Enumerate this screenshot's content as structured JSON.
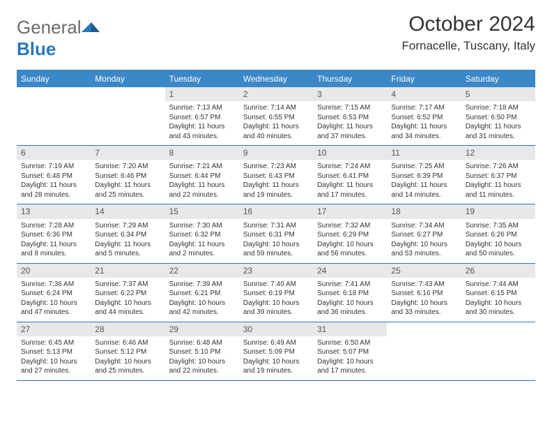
{
  "logo": {
    "word1": "General",
    "word2": "Blue"
  },
  "title": "October 2024",
  "location": "Fornacelle, Tuscany, Italy",
  "colors": {
    "header_bg": "#3b88c9",
    "rule": "#2a77bb",
    "daynum_bg": "#e8e8e8",
    "text": "#333333"
  },
  "day_headers": [
    "Sunday",
    "Monday",
    "Tuesday",
    "Wednesday",
    "Thursday",
    "Friday",
    "Saturday"
  ],
  "weeks": [
    [
      {
        "n": "",
        "sr": "",
        "ss": "",
        "dl": ""
      },
      {
        "n": "",
        "sr": "",
        "ss": "",
        "dl": ""
      },
      {
        "n": "1",
        "sr": "Sunrise: 7:13 AM",
        "ss": "Sunset: 6:57 PM",
        "dl": "Daylight: 11 hours and 43 minutes."
      },
      {
        "n": "2",
        "sr": "Sunrise: 7:14 AM",
        "ss": "Sunset: 6:55 PM",
        "dl": "Daylight: 11 hours and 40 minutes."
      },
      {
        "n": "3",
        "sr": "Sunrise: 7:15 AM",
        "ss": "Sunset: 6:53 PM",
        "dl": "Daylight: 11 hours and 37 minutes."
      },
      {
        "n": "4",
        "sr": "Sunrise: 7:17 AM",
        "ss": "Sunset: 6:52 PM",
        "dl": "Daylight: 11 hours and 34 minutes."
      },
      {
        "n": "5",
        "sr": "Sunrise: 7:18 AM",
        "ss": "Sunset: 6:50 PM",
        "dl": "Daylight: 11 hours and 31 minutes."
      }
    ],
    [
      {
        "n": "6",
        "sr": "Sunrise: 7:19 AM",
        "ss": "Sunset: 6:48 PM",
        "dl": "Daylight: 11 hours and 28 minutes."
      },
      {
        "n": "7",
        "sr": "Sunrise: 7:20 AM",
        "ss": "Sunset: 6:46 PM",
        "dl": "Daylight: 11 hours and 25 minutes."
      },
      {
        "n": "8",
        "sr": "Sunrise: 7:21 AM",
        "ss": "Sunset: 6:44 PM",
        "dl": "Daylight: 11 hours and 22 minutes."
      },
      {
        "n": "9",
        "sr": "Sunrise: 7:23 AM",
        "ss": "Sunset: 6:43 PM",
        "dl": "Daylight: 11 hours and 19 minutes."
      },
      {
        "n": "10",
        "sr": "Sunrise: 7:24 AM",
        "ss": "Sunset: 6:41 PM",
        "dl": "Daylight: 11 hours and 17 minutes."
      },
      {
        "n": "11",
        "sr": "Sunrise: 7:25 AM",
        "ss": "Sunset: 6:39 PM",
        "dl": "Daylight: 11 hours and 14 minutes."
      },
      {
        "n": "12",
        "sr": "Sunrise: 7:26 AM",
        "ss": "Sunset: 6:37 PM",
        "dl": "Daylight: 11 hours and 11 minutes."
      }
    ],
    [
      {
        "n": "13",
        "sr": "Sunrise: 7:28 AM",
        "ss": "Sunset: 6:36 PM",
        "dl": "Daylight: 11 hours and 8 minutes."
      },
      {
        "n": "14",
        "sr": "Sunrise: 7:29 AM",
        "ss": "Sunset: 6:34 PM",
        "dl": "Daylight: 11 hours and 5 minutes."
      },
      {
        "n": "15",
        "sr": "Sunrise: 7:30 AM",
        "ss": "Sunset: 6:32 PM",
        "dl": "Daylight: 11 hours and 2 minutes."
      },
      {
        "n": "16",
        "sr": "Sunrise: 7:31 AM",
        "ss": "Sunset: 6:31 PM",
        "dl": "Daylight: 10 hours and 59 minutes."
      },
      {
        "n": "17",
        "sr": "Sunrise: 7:32 AM",
        "ss": "Sunset: 6:29 PM",
        "dl": "Daylight: 10 hours and 56 minutes."
      },
      {
        "n": "18",
        "sr": "Sunrise: 7:34 AM",
        "ss": "Sunset: 6:27 PM",
        "dl": "Daylight: 10 hours and 53 minutes."
      },
      {
        "n": "19",
        "sr": "Sunrise: 7:35 AM",
        "ss": "Sunset: 6:26 PM",
        "dl": "Daylight: 10 hours and 50 minutes."
      }
    ],
    [
      {
        "n": "20",
        "sr": "Sunrise: 7:36 AM",
        "ss": "Sunset: 6:24 PM",
        "dl": "Daylight: 10 hours and 47 minutes."
      },
      {
        "n": "21",
        "sr": "Sunrise: 7:37 AM",
        "ss": "Sunset: 6:22 PM",
        "dl": "Daylight: 10 hours and 44 minutes."
      },
      {
        "n": "22",
        "sr": "Sunrise: 7:39 AM",
        "ss": "Sunset: 6:21 PM",
        "dl": "Daylight: 10 hours and 42 minutes."
      },
      {
        "n": "23",
        "sr": "Sunrise: 7:40 AM",
        "ss": "Sunset: 6:19 PM",
        "dl": "Daylight: 10 hours and 39 minutes."
      },
      {
        "n": "24",
        "sr": "Sunrise: 7:41 AM",
        "ss": "Sunset: 6:18 PM",
        "dl": "Daylight: 10 hours and 36 minutes."
      },
      {
        "n": "25",
        "sr": "Sunrise: 7:43 AM",
        "ss": "Sunset: 6:16 PM",
        "dl": "Daylight: 10 hours and 33 minutes."
      },
      {
        "n": "26",
        "sr": "Sunrise: 7:44 AM",
        "ss": "Sunset: 6:15 PM",
        "dl": "Daylight: 10 hours and 30 minutes."
      }
    ],
    [
      {
        "n": "27",
        "sr": "Sunrise: 6:45 AM",
        "ss": "Sunset: 5:13 PM",
        "dl": "Daylight: 10 hours and 27 minutes."
      },
      {
        "n": "28",
        "sr": "Sunrise: 6:46 AM",
        "ss": "Sunset: 5:12 PM",
        "dl": "Daylight: 10 hours and 25 minutes."
      },
      {
        "n": "29",
        "sr": "Sunrise: 6:48 AM",
        "ss": "Sunset: 5:10 PM",
        "dl": "Daylight: 10 hours and 22 minutes."
      },
      {
        "n": "30",
        "sr": "Sunrise: 6:49 AM",
        "ss": "Sunset: 5:09 PM",
        "dl": "Daylight: 10 hours and 19 minutes."
      },
      {
        "n": "31",
        "sr": "Sunrise: 6:50 AM",
        "ss": "Sunset: 5:07 PM",
        "dl": "Daylight: 10 hours and 17 minutes."
      },
      {
        "n": "",
        "sr": "",
        "ss": "",
        "dl": ""
      },
      {
        "n": "",
        "sr": "",
        "ss": "",
        "dl": ""
      }
    ]
  ]
}
